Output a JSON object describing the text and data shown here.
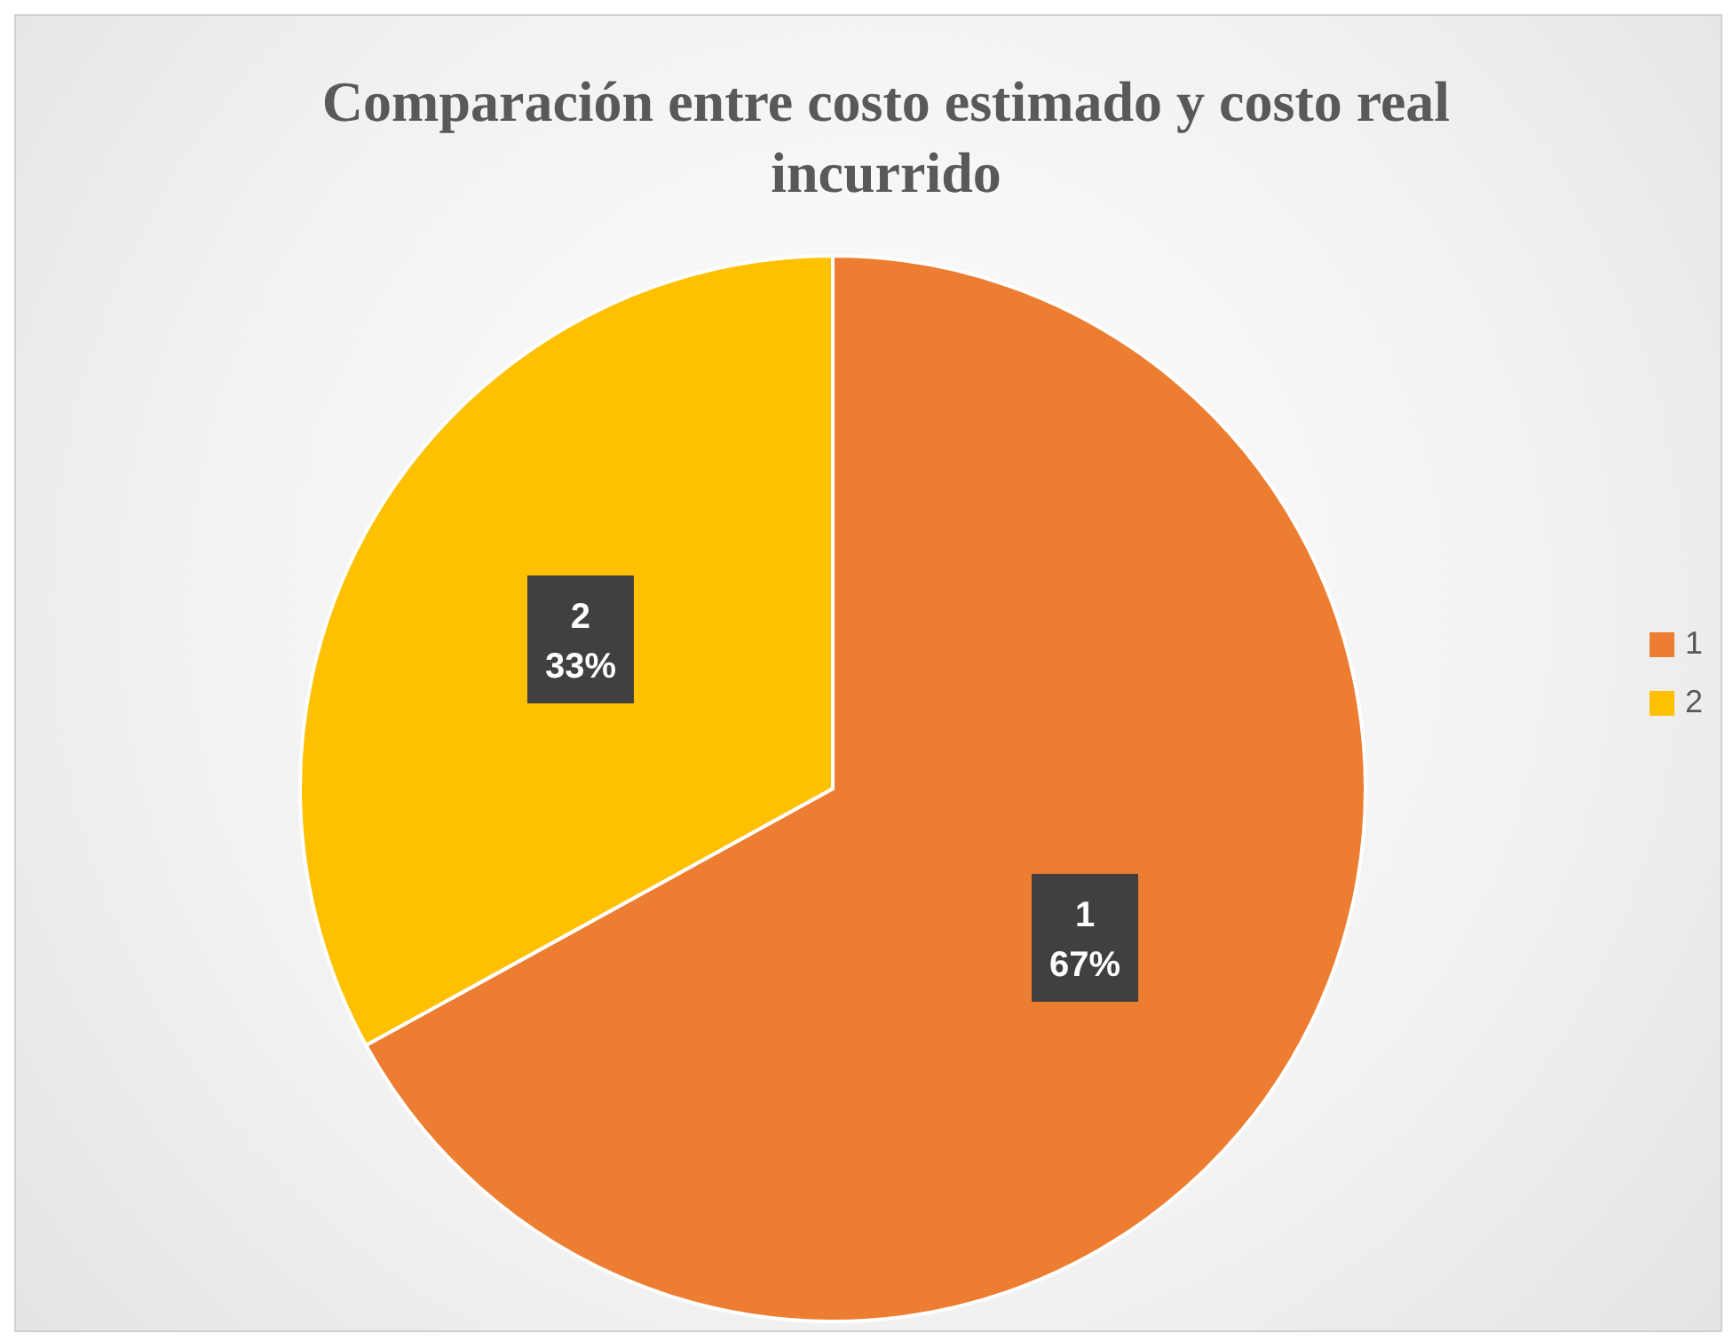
{
  "chart_data": {
    "type": "pie",
    "title": "Comparación entre costo estimado y costo real incurrido",
    "categories": [
      "1",
      "2"
    ],
    "values": [
      67,
      33
    ],
    "colors": [
      "#ed7d31",
      "#ffc000"
    ],
    "value_labels": [
      "67%",
      "33%"
    ],
    "legend": "right"
  }
}
